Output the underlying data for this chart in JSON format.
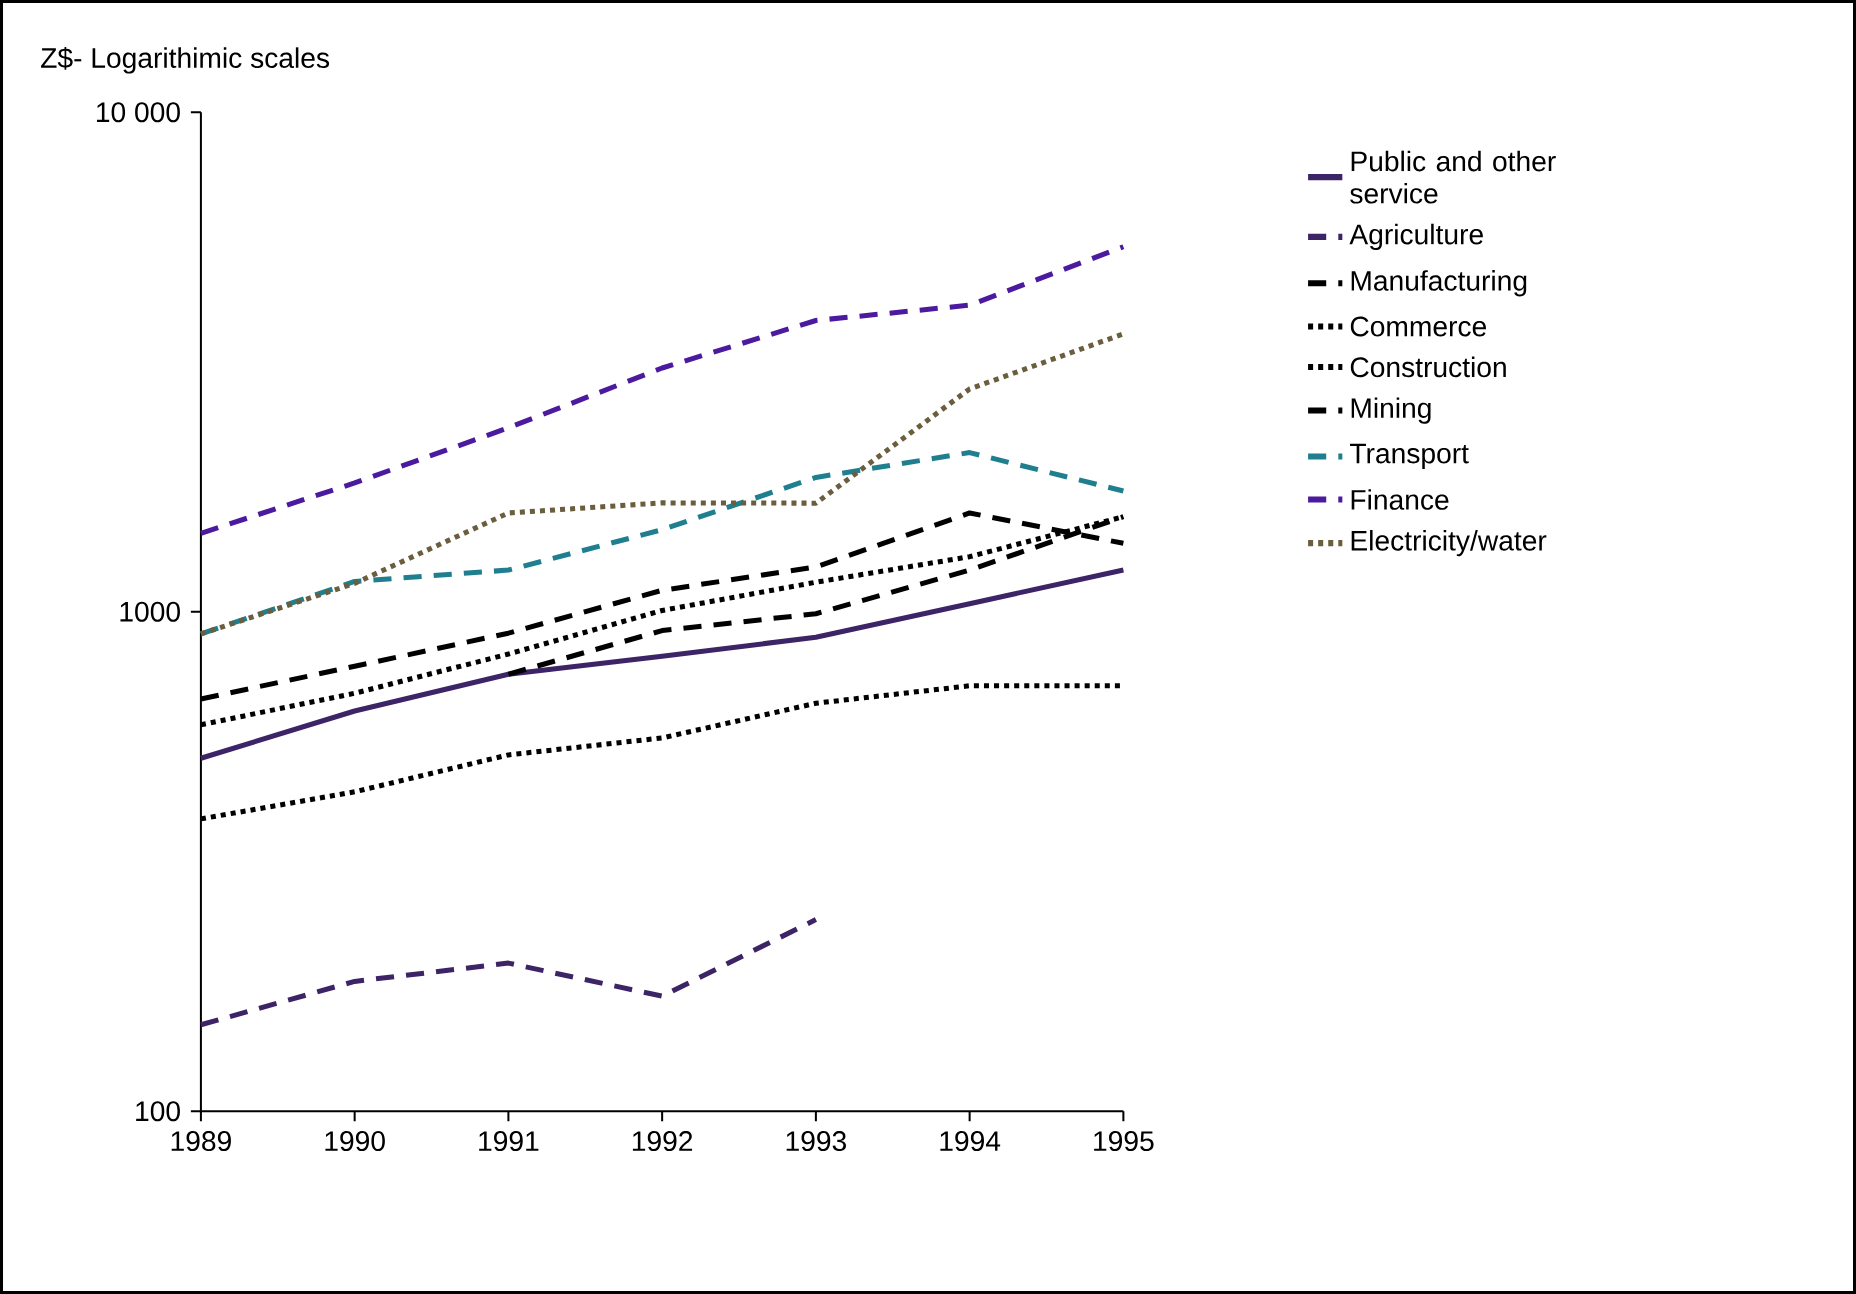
{
  "chart_data": {
    "type": "line",
    "ylabel": "Z$- Logarithimic scales",
    "log": "y",
    "legend": "right",
    "grid": false,
    "x": [
      1989,
      1990,
      1991,
      1992,
      1993,
      1994,
      1995
    ],
    "xlim": [
      1989,
      1995
    ],
    "xticks": [
      1989,
      1990,
      1991,
      1992,
      1993,
      1994,
      1995
    ],
    "ylim": [
      100,
      10000
    ],
    "yticks": [
      100,
      1000,
      {
        "value": 10000,
        "label": "10 000"
      }
    ],
    "series": [
      {
        "name": "Public and other service",
        "color": "#3d2466",
        "line_style": "solid",
        "values": [
          509,
          633,
          750,
          815,
          889,
          1038,
          1212
        ]
      },
      {
        "name": "Agriculture",
        "color": "#3d2466",
        "line_style": "dashed",
        "values": [
          149,
          182,
          198,
          170,
          242,
          null,
          null
        ]
      },
      {
        "name": "Manufacturing",
        "color": "#000000",
        "line_style": "dashed",
        "values": [
          669,
          778,
          906,
          1104,
          1230,
          1577,
          1371
        ]
      },
      {
        "name": "Commerce",
        "color": "#000000",
        "line_style": "dotted",
        "values": [
          594,
          687,
          823,
          1006,
          1146,
          1289,
          1550
        ]
      },
      {
        "name": "Construction",
        "color": "#000000",
        "line_style": "dotted",
        "values": [
          385,
          436,
          517,
          559,
          656,
          711,
          711
        ]
      },
      {
        "name": "Mining",
        "color": "#000000",
        "line_style": "dashed",
        "values": [
          null,
          null,
          750,
          917,
          991,
          1212,
          1550
        ]
      },
      {
        "name": "Transport",
        "color": "#1f7f8f",
        "line_style": "dashed",
        "values": [
          903,
          1150,
          1212,
          1460,
          1858,
          2083,
          1745
        ]
      },
      {
        "name": "Finance",
        "color": "#4b1a9e",
        "line_style": "dashed",
        "values": [
          1436,
          1811,
          2335,
          3076,
          3830,
          4110,
          5380
        ]
      },
      {
        "name": "Electricity/water",
        "color": "#6b5e3e",
        "line_style": "dotted",
        "values": [
          903,
          1140,
          1577,
          1652,
          1650,
          2793,
          3600
        ]
      }
    ]
  }
}
